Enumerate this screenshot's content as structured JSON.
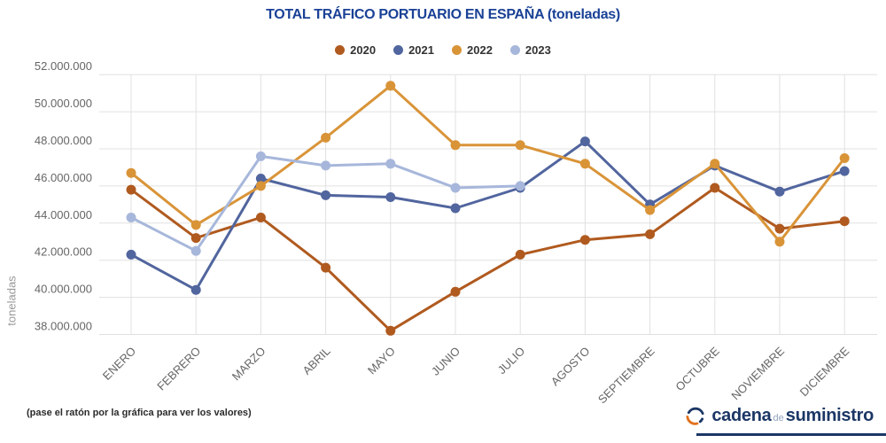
{
  "title": "TOTAL TRÁFICO PORTUARIO EN ESPAÑA (toneladas)",
  "footer_note": "(pase el ratón por la gráfica para ver los valores)",
  "logo": {
    "cadena": "cadena",
    "de": "de",
    "suministro": "suministro"
  },
  "colors": {
    "title": "#1a4196",
    "logo_navy": "#1c3766",
    "logo_orange": "#e2711d",
    "grid": "#e0e0e0",
    "axis_text": "#666666"
  },
  "chart_data": {
    "type": "line",
    "title": "TOTAL TRÁFICO PORTUARIO EN ESPAÑA (toneladas)",
    "xlabel": "",
    "ylabel": "toneladas",
    "categories": [
      "ENERO",
      "FEBRERO",
      "MARZO",
      "ABRIL",
      "MAYO",
      "JUNIO",
      "JULIO",
      "AGOSTO",
      "SEPTIEMBRE",
      "OCTUBRE",
      "NOVIEMBRE",
      "DICIEMBRE"
    ],
    "ylim": [
      38000000,
      52000000
    ],
    "y_ticks": [
      38000000,
      40000000,
      42000000,
      44000000,
      46000000,
      48000000,
      50000000,
      52000000
    ],
    "grid": true,
    "legend_position": "top",
    "series": [
      {
        "name": "2020",
        "color": "#b05a1f",
        "values": [
          45800000,
          43200000,
          44300000,
          41600000,
          38200000,
          40300000,
          42300000,
          43100000,
          43400000,
          45900000,
          43700000,
          44100000
        ]
      },
      {
        "name": "2021",
        "color": "#51659e",
        "values": [
          42300000,
          40400000,
          46400000,
          45500000,
          45400000,
          44800000,
          45900000,
          48400000,
          45000000,
          47100000,
          45700000,
          46800000
        ]
      },
      {
        "name": "2022",
        "color": "#d99438",
        "values": [
          46700000,
          43900000,
          46000000,
          48600000,
          51400000,
          48200000,
          48200000,
          47200000,
          44700000,
          47200000,
          43000000,
          47500000
        ]
      },
      {
        "name": "2023",
        "color": "#a7b7db",
        "values": [
          44300000,
          42500000,
          47600000,
          47100000,
          47200000,
          45900000,
          46000000,
          null,
          null,
          null,
          null,
          null
        ]
      }
    ]
  }
}
